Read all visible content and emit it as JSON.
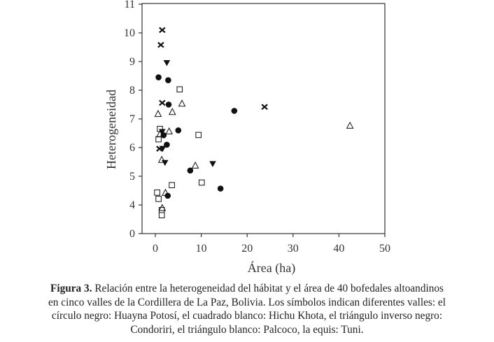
{
  "chart_data": {
    "type": "scatter",
    "title": "",
    "xlabel": "Área (ha)",
    "ylabel": "Heterogeneidad",
    "xlim": [
      -3,
      50
    ],
    "ylim": [
      0,
      11
    ],
    "y_axis_break": "0 placed one unit below 4 (axis jumps from 0 to 4)",
    "xticks": [
      0,
      10,
      20,
      30,
      40,
      50
    ],
    "yticks": [
      0,
      4,
      5,
      6,
      7,
      8,
      9,
      10,
      11
    ],
    "grid": false,
    "legend": "none (explained in caption)",
    "series": [
      {
        "name": "Huayna Potosí",
        "marker": "filled-circle",
        "color": "#111111",
        "points": [
          [
            0.7,
            8.45
          ],
          [
            2.8,
            8.35
          ],
          [
            2.9,
            7.5
          ],
          [
            17.2,
            7.28
          ],
          [
            5.0,
            6.6
          ],
          [
            1.8,
            6.43
          ],
          [
            2.5,
            6.1
          ],
          [
            7.6,
            5.2
          ],
          [
            14.2,
            4.57
          ],
          [
            2.7,
            4.32
          ]
        ]
      },
      {
        "name": "Hichu Khota",
        "marker": "open-square",
        "color": "#111111",
        "points": [
          [
            5.3,
            8.03
          ],
          [
            1.0,
            6.65
          ],
          [
            0.7,
            6.29
          ],
          [
            9.4,
            6.44
          ],
          [
            3.6,
            4.69
          ],
          [
            10.1,
            4.78
          ],
          [
            0.4,
            4.43
          ],
          [
            0.7,
            4.21
          ],
          [
            1.4,
            3.82
          ],
          [
            1.4,
            3.64
          ]
        ]
      },
      {
        "name": "Condoriri",
        "marker": "filled-inverted-triangle",
        "color": "#111111",
        "points": [
          [
            2.5,
            8.95
          ],
          [
            1.5,
            6.55
          ],
          [
            1.6,
            5.96
          ],
          [
            2.1,
            5.47
          ],
          [
            12.5,
            5.43
          ]
        ]
      },
      {
        "name": "Palcoco",
        "marker": "open-triangle",
        "color": "#111111",
        "points": [
          [
            0.6,
            7.18
          ],
          [
            5.8,
            7.54
          ],
          [
            3.7,
            7.25
          ],
          [
            3.0,
            6.57
          ],
          [
            1.0,
            6.47
          ],
          [
            1.4,
            5.58
          ],
          [
            8.7,
            5.38
          ],
          [
            2.2,
            4.43
          ],
          [
            1.5,
            3.9
          ],
          [
            42.4,
            6.77
          ]
        ]
      },
      {
        "name": "Tuni",
        "marker": "x",
        "color": "#111111",
        "points": [
          [
            1.5,
            10.1
          ],
          [
            1.2,
            9.58
          ],
          [
            1.5,
            7.56
          ],
          [
            23.8,
            7.42
          ],
          [
            0.9,
            5.96
          ]
        ]
      }
    ]
  },
  "caption": {
    "label": "Figura 3.",
    "lines": [
      " Relación entre la heterogeneidad del hábitat y el área de 40 bofedales altoandinos",
      "en cinco valles de la Cordillera de La Paz, Bolivia. Los símbolos indican diferentes valles: el",
      "círculo negro: Huayna Potosí, el cuadrado blanco: Hichu Khota, el triángulo inverso negro:",
      "Condoriri, el triángulo blanco: Palcoco, la equis: Tuni."
    ]
  }
}
